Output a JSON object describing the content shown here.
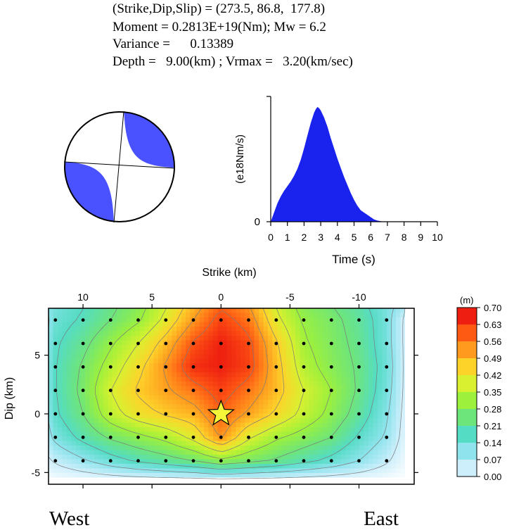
{
  "header": {
    "line1": "(Strike,Dip,Slip) = (273.5, 86.8,  177.8)",
    "line2": "Moment = 0.2813E+19(Nm); Mw = 6.2",
    "line3": "Variance =      0.13389",
    "line4": "Depth =   9.00(km) ; Vrmax =   3.20(km/sec)"
  },
  "mechanism": {
    "strike": 273.5,
    "dip": 86.8,
    "slip": 177.8,
    "compression_color": "#4a52ff"
  },
  "stf": {
    "ylabel": "(e18Nm/s)",
    "xlabel": "Time (s)",
    "y_tick": "0",
    "x_ticks": [
      "0",
      "1",
      "2",
      "3",
      "4",
      "5",
      "6",
      "7",
      "8",
      "9",
      "10"
    ],
    "fill_color": "#1a22ee"
  },
  "slipmap": {
    "xlabel": "Strike (km)",
    "ylabel": "Dip (km)",
    "x_ticks": [
      "10",
      "5",
      "0",
      "-5",
      "-10"
    ],
    "y_ticks": [
      "5",
      "0",
      "-5"
    ],
    "left_label": "West",
    "right_label": "East",
    "hypocenter_color": "#f5f53a",
    "colorbar_unit": "(m)",
    "colorbar_ticks": [
      "0.70",
      "0.63",
      "0.56",
      "0.49",
      "0.42",
      "0.35",
      "0.28",
      "0.21",
      "0.14",
      "0.07",
      "0.00"
    ],
    "colorbar_colors": [
      "#ffffff",
      "#cdeffb",
      "#8ee3ec",
      "#55dcc4",
      "#6ee57a",
      "#9df03c",
      "#d8f030",
      "#fdd32a",
      "#ff9a1e",
      "#ff5a14",
      "#ee1f10"
    ]
  },
  "chart_data": [
    {
      "type": "area",
      "title": "",
      "xlabel": "Time (s)",
      "ylabel": "(e18Nm/s)",
      "xlim": [
        0,
        10
      ],
      "x": [
        0,
        0.2,
        0.4,
        0.6,
        0.8,
        1.0,
        1.2,
        1.4,
        1.6,
        1.8,
        2.0,
        2.2,
        2.4,
        2.6,
        2.7,
        2.8,
        2.9,
        3.0,
        3.2,
        3.4,
        3.6,
        3.8,
        4.0,
        4.2,
        4.4,
        4.6,
        4.8,
        5.0,
        5.2,
        5.4,
        5.6,
        5.8,
        6.0,
        6.2,
        6.4,
        6.6,
        6.8
      ],
      "y": [
        0,
        0.08,
        0.16,
        0.22,
        0.27,
        0.31,
        0.35,
        0.4,
        0.46,
        0.54,
        0.64,
        0.75,
        0.86,
        0.95,
        0.98,
        1.0,
        0.99,
        0.97,
        0.91,
        0.83,
        0.73,
        0.64,
        0.55,
        0.47,
        0.39,
        0.32,
        0.25,
        0.19,
        0.14,
        0.1,
        0.08,
        0.06,
        0.04,
        0.02,
        0.01,
        0.005,
        0
      ]
    },
    {
      "type": "heatmap",
      "title": "",
      "xlabel": "Strike (km)",
      "ylabel": "Dip (km)",
      "xlim": [
        12.5,
        -14
      ],
      "ylim": [
        -6,
        9
      ],
      "colorbar_range": [
        0.0,
        0.7
      ],
      "unit": "(m)",
      "x": [
        12,
        10,
        8,
        6,
        4,
        2,
        0,
        -2,
        -4,
        -6,
        -8,
        -10,
        -12
      ],
      "y": [
        8,
        6,
        4,
        2,
        0,
        -2,
        -4
      ],
      "z": [
        [
          0.18,
          0.22,
          0.28,
          0.34,
          0.44,
          0.56,
          0.66,
          0.6,
          0.44,
          0.34,
          0.3,
          0.25,
          0.17
        ],
        [
          0.2,
          0.26,
          0.34,
          0.42,
          0.52,
          0.64,
          0.7,
          0.65,
          0.5,
          0.36,
          0.31,
          0.26,
          0.17
        ],
        [
          0.21,
          0.29,
          0.38,
          0.47,
          0.57,
          0.68,
          0.7,
          0.66,
          0.52,
          0.38,
          0.32,
          0.27,
          0.18
        ],
        [
          0.21,
          0.3,
          0.42,
          0.5,
          0.55,
          0.6,
          0.66,
          0.6,
          0.52,
          0.42,
          0.35,
          0.27,
          0.17
        ],
        [
          0.2,
          0.28,
          0.39,
          0.46,
          0.5,
          0.53,
          0.62,
          0.55,
          0.48,
          0.4,
          0.33,
          0.25,
          0.15
        ],
        [
          0.16,
          0.23,
          0.29,
          0.33,
          0.37,
          0.44,
          0.57,
          0.43,
          0.36,
          0.32,
          0.28,
          0.2,
          0.13
        ],
        [
          0.08,
          0.13,
          0.18,
          0.22,
          0.25,
          0.28,
          0.33,
          0.3,
          0.27,
          0.23,
          0.19,
          0.14,
          0.08
        ]
      ],
      "subfault_dots": {
        "x": [
          12,
          10,
          8,
          6,
          4,
          2,
          0,
          -2,
          -4,
          -6,
          -8,
          -10,
          -12
        ],
        "y": [
          8,
          6,
          4,
          2,
          0,
          -2,
          -4
        ]
      },
      "hypocenter": {
        "x": 0,
        "y": 0
      }
    }
  ]
}
